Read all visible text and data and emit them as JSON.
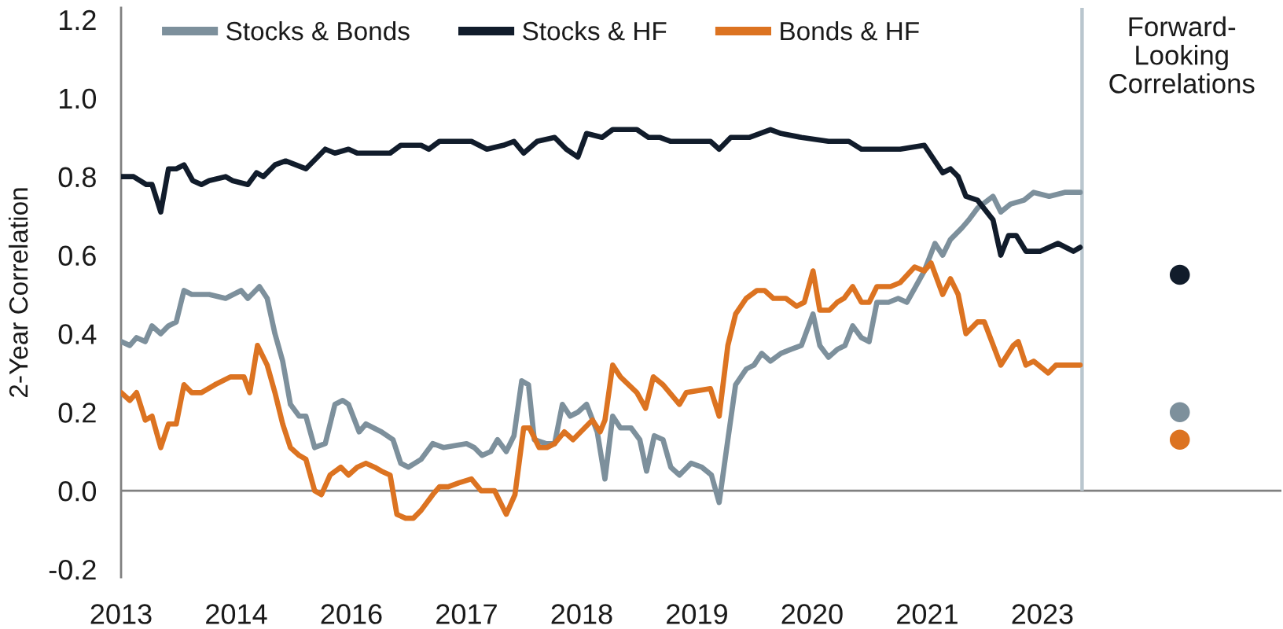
{
  "chart_data": {
    "type": "line",
    "ylabel": "2-Year Correlation",
    "xlim": [
      2013.14,
      2025.13
    ],
    "xticks": [
      {
        "value": 2013.14,
        "label": "2013"
      },
      {
        "value": 2014.33,
        "label": "2014"
      },
      {
        "value": 2015.52,
        "label": "2016"
      },
      {
        "value": 2016.71,
        "label": "2017"
      },
      {
        "value": 2017.9,
        "label": "2018"
      },
      {
        "value": 2019.09,
        "label": "2019"
      },
      {
        "value": 2020.28,
        "label": "2020"
      },
      {
        "value": 2021.47,
        "label": "2021"
      },
      {
        "value": 2022.66,
        "label": "2023"
      }
    ],
    "ylim": [
      -0.22,
      1.23
    ],
    "yticks": [
      -0.2,
      {
        "value": 0,
        "label": "0.0"
      },
      0.2,
      0.4,
      0.6,
      0.8,
      {
        "value": 1.0,
        "label": "1.0"
      },
      1.2
    ],
    "legend": "top left",
    "ref_lines": [
      {
        "axis": "y",
        "value": 0,
        "color": "#808080"
      },
      {
        "axis": "x",
        "value": 2023.07,
        "color": "#b9c6ce"
      }
    ],
    "annotations": [
      "Forward-\nLooking\nCorrelations"
    ],
    "series": [
      {
        "name": "Stocks & Bonds",
        "color": "#7d909c",
        "x": [
          2013.14,
          2013.23,
          2013.3,
          2013.39,
          2013.46,
          2013.55,
          2013.63,
          2013.71,
          2013.79,
          2013.87,
          2013.97,
          2014.05,
          2014.22,
          2014.38,
          2014.45,
          2014.57,
          2014.65,
          2014.73,
          2014.81,
          2014.89,
          2014.98,
          2015.05,
          2015.14,
          2015.25,
          2015.35,
          2015.43,
          2015.49,
          2015.6,
          2015.67,
          2015.83,
          2015.95,
          2016.03,
          2016.11,
          2016.24,
          2016.36,
          2016.47,
          2016.71,
          2016.79,
          2016.87,
          2016.96,
          2017.03,
          2017.12,
          2017.2,
          2017.28,
          2017.35,
          2017.41,
          2017.53,
          2017.62,
          2017.7,
          2017.78,
          2017.86,
          2017.95,
          2018.06,
          2018.14,
          2018.22,
          2018.3,
          2018.41,
          2018.5,
          2018.57,
          2018.65,
          2018.74,
          2018.82,
          2018.91,
          2019.03,
          2019.14,
          2019.24,
          2019.32,
          2019.41,
          2019.49,
          2019.6,
          2019.68,
          2019.76,
          2019.85,
          2019.96,
          2020.06,
          2020.17,
          2020.29,
          2020.36,
          2020.45,
          2020.54,
          2020.62,
          2020.7,
          2020.79,
          2020.87,
          2020.95,
          2021.07,
          2021.17,
          2021.26,
          2021.35,
          2021.44,
          2021.55,
          2021.63,
          2021.71,
          2021.83,
          2021.9,
          2021.99,
          2022.15,
          2022.23,
          2022.33,
          2022.47,
          2022.57,
          2022.73,
          2022.89,
          2023.05
        ],
        "values": [
          0.38,
          0.37,
          0.39,
          0.38,
          0.42,
          0.4,
          0.42,
          0.43,
          0.51,
          0.5,
          0.5,
          0.5,
          0.49,
          0.51,
          0.49,
          0.52,
          0.49,
          0.4,
          0.33,
          0.22,
          0.19,
          0.19,
          0.11,
          0.12,
          0.22,
          0.23,
          0.22,
          0.15,
          0.17,
          0.15,
          0.13,
          0.07,
          0.06,
          0.08,
          0.12,
          0.11,
          0.12,
          0.11,
          0.09,
          0.1,
          0.13,
          0.1,
          0.14,
          0.28,
          0.27,
          0.13,
          0.12,
          0.12,
          0.22,
          0.19,
          0.2,
          0.22,
          0.15,
          0.03,
          0.19,
          0.16,
          0.16,
          0.13,
          0.05,
          0.14,
          0.13,
          0.06,
          0.04,
          0.07,
          0.06,
          0.04,
          -0.03,
          0.13,
          0.27,
          0.31,
          0.32,
          0.35,
          0.33,
          0.35,
          0.36,
          0.37,
          0.45,
          0.37,
          0.34,
          0.36,
          0.37,
          0.42,
          0.39,
          0.38,
          0.48,
          0.48,
          0.49,
          0.48,
          0.52,
          0.56,
          0.63,
          0.6,
          0.64,
          0.67,
          0.69,
          0.72,
          0.75,
          0.71,
          0.73,
          0.74,
          0.76,
          0.75,
          0.76,
          0.76
        ]
      },
      {
        "name": "Stocks & HF",
        "color": "#111c2b",
        "x": [
          2013.14,
          2013.27,
          2013.4,
          2013.46,
          2013.55,
          2013.63,
          2013.71,
          2013.79,
          2013.88,
          2013.97,
          2014.05,
          2014.22,
          2014.29,
          2014.45,
          2014.54,
          2014.61,
          2014.73,
          2014.84,
          2015.05,
          2015.25,
          2015.35,
          2015.49,
          2015.58,
          2015.67,
          2015.79,
          2015.92,
          2016.03,
          2016.24,
          2016.32,
          2016.43,
          2016.76,
          2016.92,
          2017.09,
          2017.2,
          2017.3,
          2017.44,
          2017.62,
          2017.74,
          2017.86,
          2017.95,
          2018.11,
          2018.22,
          2018.47,
          2018.59,
          2018.71,
          2018.82,
          2019.03,
          2019.23,
          2019.32,
          2019.44,
          2019.63,
          2019.85,
          2019.96,
          2020.17,
          2020.45,
          2020.66,
          2020.79,
          2021.03,
          2021.19,
          2021.44,
          2021.63,
          2021.71,
          2021.79,
          2021.87,
          2021.99,
          2022.15,
          2022.23,
          2022.31,
          2022.39,
          2022.49,
          2022.64,
          2022.82,
          2022.98,
          2023.05
        ],
        "values": [
          0.8,
          0.8,
          0.78,
          0.78,
          0.71,
          0.82,
          0.82,
          0.83,
          0.79,
          0.78,
          0.79,
          0.8,
          0.79,
          0.78,
          0.81,
          0.8,
          0.83,
          0.84,
          0.82,
          0.87,
          0.86,
          0.87,
          0.86,
          0.86,
          0.86,
          0.86,
          0.88,
          0.88,
          0.87,
          0.89,
          0.89,
          0.87,
          0.88,
          0.89,
          0.86,
          0.89,
          0.9,
          0.87,
          0.85,
          0.91,
          0.9,
          0.92,
          0.92,
          0.9,
          0.9,
          0.89,
          0.89,
          0.89,
          0.87,
          0.9,
          0.9,
          0.92,
          0.91,
          0.9,
          0.89,
          0.89,
          0.87,
          0.87,
          0.87,
          0.88,
          0.81,
          0.82,
          0.8,
          0.75,
          0.74,
          0.69,
          0.6,
          0.65,
          0.65,
          0.61,
          0.61,
          0.63,
          0.61,
          0.62
        ]
      },
      {
        "name": "Bonds & HF",
        "color": "#dc7321",
        "x": [
          2013.14,
          2013.23,
          2013.3,
          2013.39,
          2013.46,
          2013.55,
          2013.63,
          2013.71,
          2013.79,
          2013.87,
          2013.97,
          2014.11,
          2014.27,
          2014.41,
          2014.47,
          2014.55,
          2014.65,
          2014.73,
          2014.81,
          2014.89,
          2014.98,
          2015.05,
          2015.14,
          2015.21,
          2015.3,
          2015.41,
          2015.49,
          2015.58,
          2015.67,
          2015.76,
          2015.83,
          2015.92,
          2015.99,
          2016.08,
          2016.16,
          2016.24,
          2016.36,
          2016.43,
          2016.52,
          2016.63,
          2016.76,
          2016.86,
          2017.0,
          2017.12,
          2017.21,
          2017.3,
          2017.36,
          2017.46,
          2017.54,
          2017.62,
          2017.72,
          2017.81,
          2017.93,
          2018.01,
          2018.09,
          2018.14,
          2018.22,
          2018.3,
          2018.47,
          2018.56,
          2018.64,
          2018.74,
          2018.91,
          2018.98,
          2019.23,
          2019.32,
          2019.41,
          2019.49,
          2019.6,
          2019.71,
          2019.79,
          2019.88,
          2020.01,
          2020.12,
          2020.2,
          2020.29,
          2020.36,
          2020.46,
          2020.54,
          2020.61,
          2020.7,
          2020.79,
          2020.87,
          2020.95,
          2021.09,
          2021.19,
          2021.34,
          2021.44,
          2021.51,
          2021.63,
          2021.71,
          2021.79,
          2021.87,
          2021.99,
          2022.06,
          2022.23,
          2022.36,
          2022.41,
          2022.49,
          2022.57,
          2022.72,
          2022.8,
          2022.93,
          2023.05
        ],
        "values": [
          0.25,
          0.23,
          0.25,
          0.18,
          0.19,
          0.11,
          0.17,
          0.17,
          0.27,
          0.25,
          0.25,
          0.27,
          0.29,
          0.29,
          0.25,
          0.37,
          0.32,
          0.25,
          0.17,
          0.11,
          0.09,
          0.08,
          0.0,
          -0.01,
          0.04,
          0.06,
          0.04,
          0.06,
          0.07,
          0.06,
          0.05,
          0.04,
          -0.06,
          -0.07,
          -0.07,
          -0.05,
          -0.01,
          0.01,
          0.01,
          0.02,
          0.03,
          0.0,
          0.0,
          -0.06,
          -0.01,
          0.16,
          0.16,
          0.11,
          0.11,
          0.12,
          0.15,
          0.13,
          0.16,
          0.18,
          0.15,
          0.18,
          0.32,
          0.29,
          0.25,
          0.21,
          0.29,
          0.27,
          0.22,
          0.25,
          0.26,
          0.19,
          0.37,
          0.45,
          0.49,
          0.51,
          0.51,
          0.49,
          0.49,
          0.47,
          0.48,
          0.56,
          0.46,
          0.46,
          0.48,
          0.49,
          0.52,
          0.48,
          0.48,
          0.52,
          0.52,
          0.53,
          0.57,
          0.56,
          0.58,
          0.5,
          0.54,
          0.5,
          0.4,
          0.43,
          0.43,
          0.32,
          0.37,
          0.38,
          0.32,
          0.33,
          0.3,
          0.32,
          0.32,
          0.32
        ]
      },
      {
        "type": "scatter",
        "x": [
          2024.08,
          2024.08,
          2024.08
        ],
        "values": [
          0.55,
          0.2,
          0.13
        ],
        "colors": [
          "#111c2b",
          "#7d909c",
          "#dc7321"
        ]
      }
    ]
  }
}
